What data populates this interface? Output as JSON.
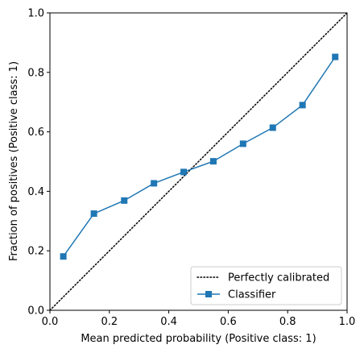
{
  "chart_data": {
    "type": "line",
    "title": "",
    "xlabel": "Mean predicted probability (Positive class: 1)",
    "ylabel": "Fraction of positives (Positive class: 1)",
    "xlim": [
      0,
      1
    ],
    "ylim": [
      0,
      1
    ],
    "x_ticks": [
      "0.0",
      "0.2",
      "0.4",
      "0.6",
      "0.8",
      "1.0"
    ],
    "y_ticks": [
      "0.0",
      "0.2",
      "0.4",
      "0.6",
      "0.8",
      "1.0"
    ],
    "grid": false,
    "legend_position": "lower-right",
    "series": [
      {
        "name": "Perfectly calibrated",
        "style": "dotted",
        "marker": "none",
        "color": "#000000",
        "x": [
          0,
          1
        ],
        "y": [
          0,
          1
        ]
      },
      {
        "name": "Classifier",
        "style": "solid",
        "marker": "square",
        "color": "#1f77b4",
        "x": [
          0.045,
          0.148,
          0.25,
          0.35,
          0.45,
          0.55,
          0.65,
          0.75,
          0.85,
          0.96
        ],
        "y": [
          0.181,
          0.325,
          0.369,
          0.427,
          0.465,
          0.501,
          0.56,
          0.614,
          0.69,
          0.852
        ]
      }
    ]
  }
}
